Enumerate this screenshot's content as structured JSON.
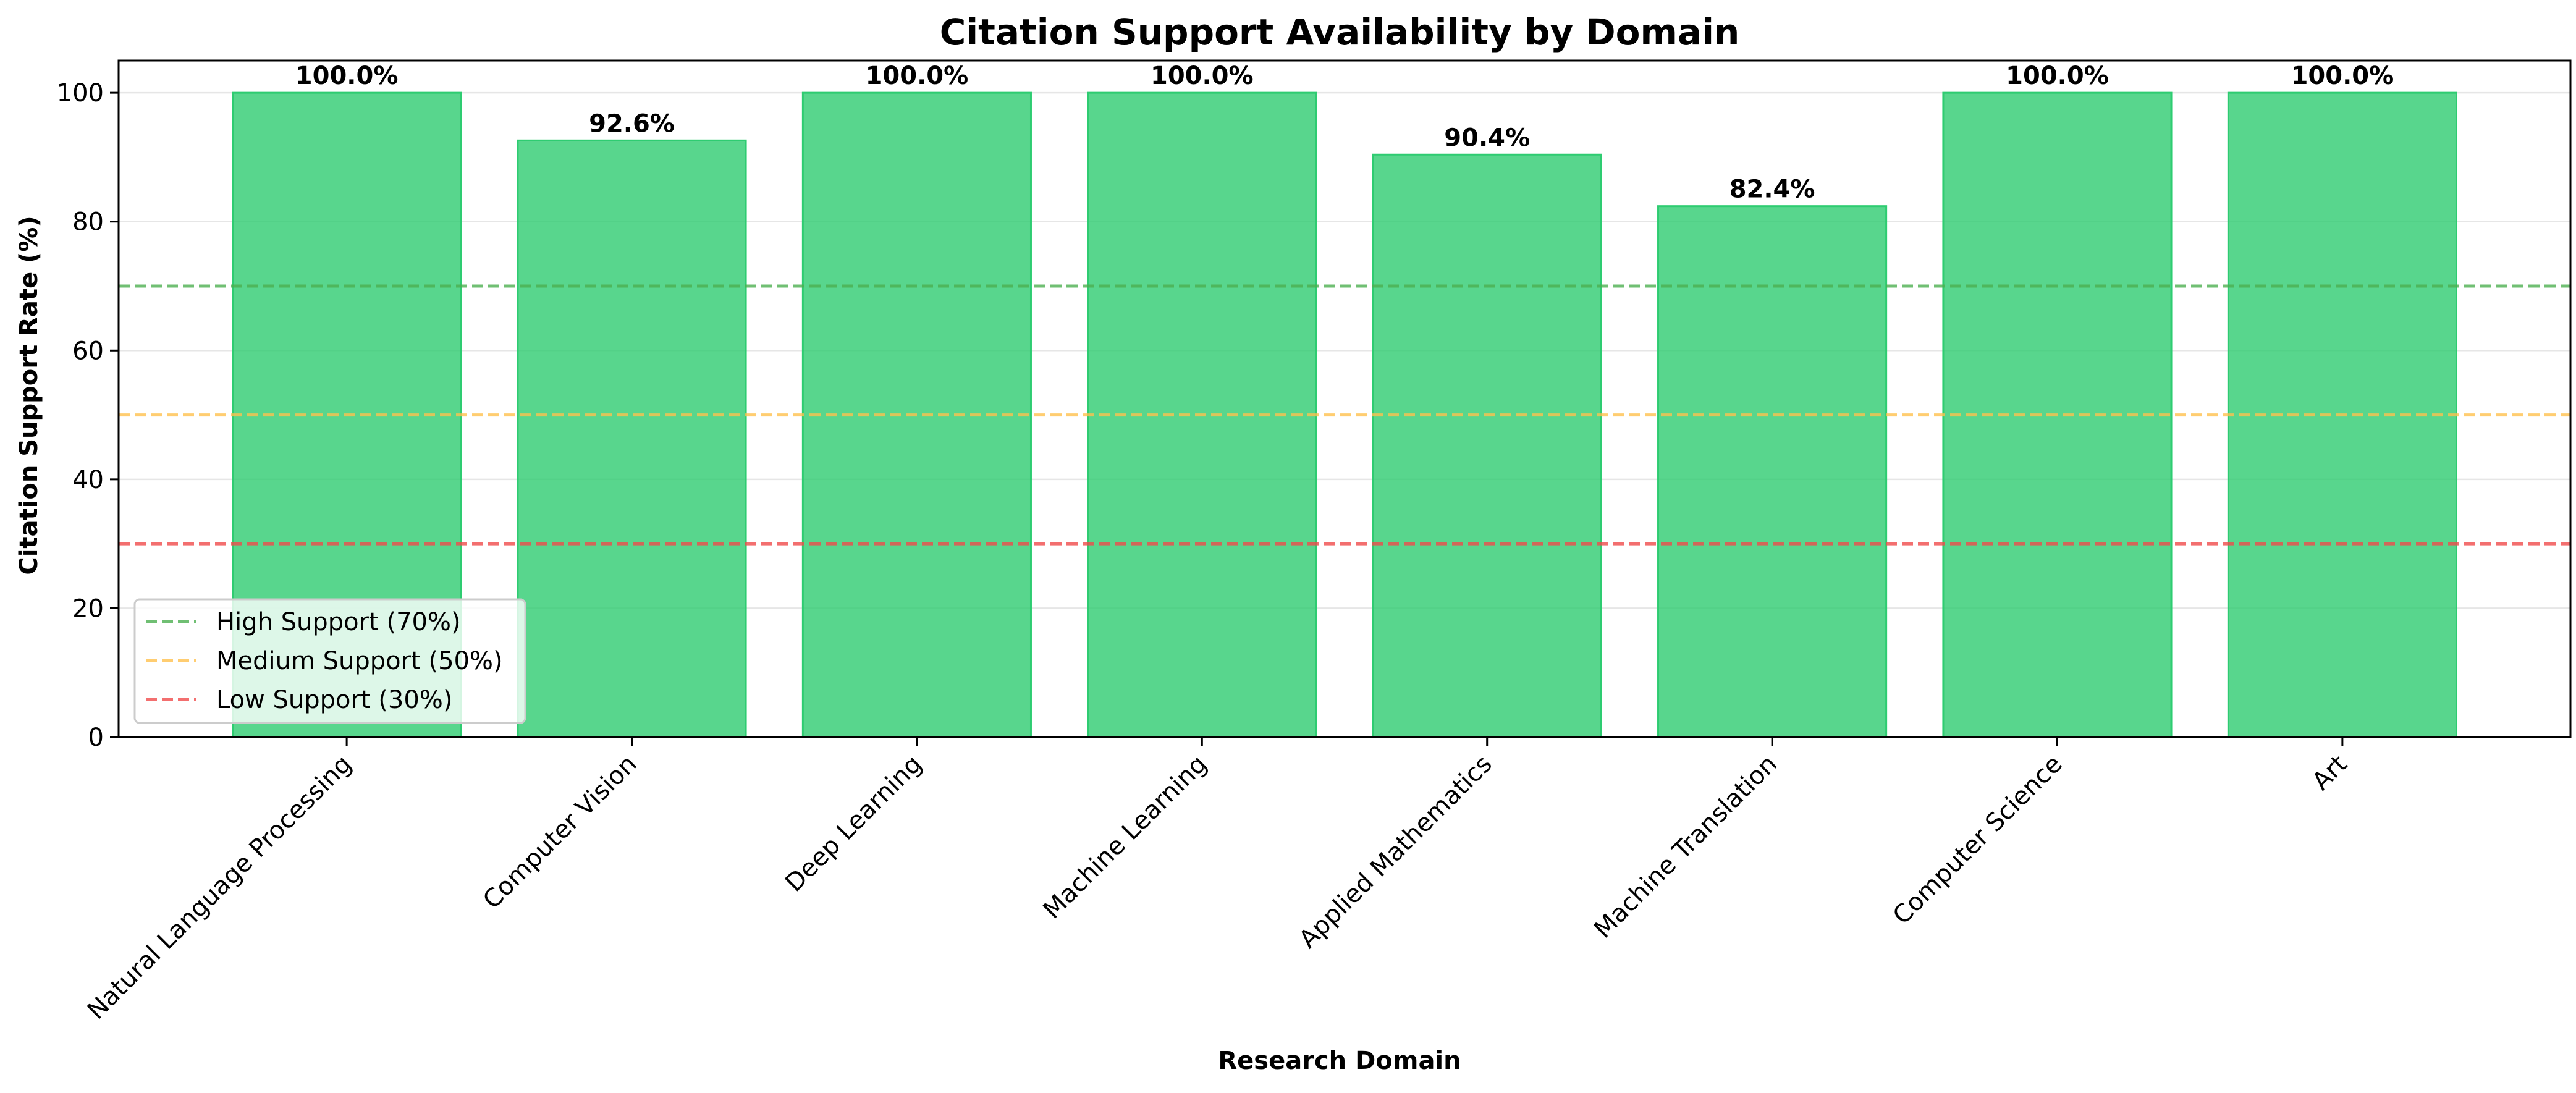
{
  "chart_data": {
    "type": "bar",
    "title": "Citation Support Availability by Domain",
    "xlabel": "Research Domain",
    "ylabel": "Citation Support Rate (%)",
    "categories": [
      "Natural Language Processing",
      "Computer Vision",
      "Deep Learning",
      "Machine Learning",
      "Applied Mathematics",
      "Machine Translation",
      "Computer Science",
      "Art"
    ],
    "values": [
      100.0,
      92.6,
      100.0,
      100.0,
      90.4,
      82.4,
      100.0,
      100.0
    ],
    "data_labels": [
      "100.0%",
      "92.6%",
      "100.0%",
      "100.0%",
      "90.4%",
      "82.4%",
      "100.0%",
      "100.0%"
    ],
    "ylim": [
      0,
      105
    ],
    "yticks": [
      0,
      20,
      40,
      60,
      80,
      100
    ],
    "grid": "horizontal",
    "bar_color": "#2ecc71",
    "reference_lines": [
      {
        "label": "High Support (70%)",
        "value": 70,
        "color": "#4caf50"
      },
      {
        "label": "Medium Support (50%)",
        "value": 50,
        "color": "#ffc04d"
      },
      {
        "label": "Low Support (30%)",
        "value": 30,
        "color": "#f04b4b"
      }
    ],
    "legend_position": "lower-left"
  }
}
